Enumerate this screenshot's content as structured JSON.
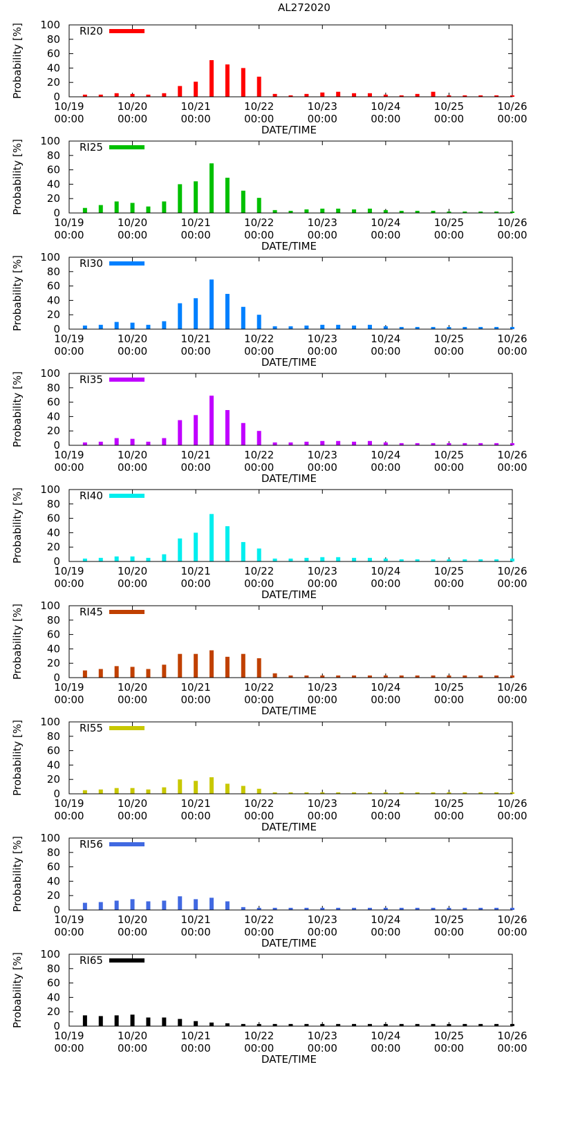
{
  "figure_title": "AL272020",
  "colors": {
    "RI20": "#ff0000",
    "RI25": "#00c000",
    "RI30": "#0080ff",
    "RI35": "#c000ff",
    "RI40": "#00eeee",
    "RI45": "#c04000",
    "RI55": "#c8c800",
    "RI56": "#4169e1",
    "RI65": "#000000"
  },
  "chart_data": [
    {
      "type": "bar",
      "name": "RI20",
      "legend": "RI20",
      "xlabel": "DATE/TIME",
      "ylabel": "Probability [%]",
      "ylim": [
        0,
        100
      ],
      "yticks": [
        "0",
        "20",
        "40",
        "60",
        "80",
        "100"
      ],
      "xlim_hours": [
        0,
        168
      ],
      "xticks": [
        {
          "line1": "10/19",
          "line2": "00:00"
        },
        {
          "line1": "10/20",
          "line2": "00:00"
        },
        {
          "line1": "10/21",
          "line2": "00:00"
        },
        {
          "line1": "10/22",
          "line2": "00:00"
        },
        {
          "line1": "10/23",
          "line2": "00:00"
        },
        {
          "line1": "10/24",
          "line2": "00:00"
        },
        {
          "line1": "10/25",
          "line2": "00:00"
        },
        {
          "line1": "10/26",
          "line2": "00:00"
        }
      ],
      "x_hours": [
        6,
        12,
        18,
        24,
        30,
        36,
        42,
        48,
        54,
        60,
        66,
        72,
        78,
        84,
        90,
        96,
        102,
        108,
        114,
        120,
        126,
        132,
        138,
        144,
        150,
        156,
        162,
        168
      ],
      "values": [
        3,
        3,
        5,
        4,
        3,
        5,
        15,
        21,
        51,
        45,
        40,
        28,
        4,
        2,
        4,
        6,
        7,
        5,
        5,
        3,
        2,
        4,
        7,
        2,
        2,
        2,
        2,
        2
      ]
    },
    {
      "type": "bar",
      "name": "RI25",
      "legend": "RI25",
      "xlabel": "DATE/TIME",
      "ylabel": "Probability [%]",
      "ylim": [
        0,
        100
      ],
      "yticks": [
        "0",
        "20",
        "40",
        "60",
        "80",
        "100"
      ],
      "xlim_hours": [
        0,
        168
      ],
      "xticks": [
        {
          "line1": "10/19",
          "line2": "00:00"
        },
        {
          "line1": "10/20",
          "line2": "00:00"
        },
        {
          "line1": "10/21",
          "line2": "00:00"
        },
        {
          "line1": "10/22",
          "line2": "00:00"
        },
        {
          "line1": "10/23",
          "line2": "00:00"
        },
        {
          "line1": "10/24",
          "line2": "00:00"
        },
        {
          "line1": "10/25",
          "line2": "00:00"
        },
        {
          "line1": "10/26",
          "line2": "00:00"
        }
      ],
      "x_hours": [
        6,
        12,
        18,
        24,
        30,
        36,
        42,
        48,
        54,
        60,
        66,
        72,
        78,
        84,
        90,
        96,
        102,
        108,
        114,
        120,
        126,
        132,
        138,
        144,
        150,
        156,
        162,
        168
      ],
      "values": [
        7,
        11,
        16,
        14,
        9,
        16,
        40,
        44,
        69,
        49,
        31,
        21,
        4,
        3,
        5,
        6,
        6,
        5,
        6,
        4,
        3,
        3,
        3,
        2,
        2,
        2,
        2,
        2
      ]
    },
    {
      "type": "bar",
      "name": "RI30",
      "legend": "RI30",
      "xlabel": "DATE/TIME",
      "ylabel": "Probability [%]",
      "ylim": [
        0,
        100
      ],
      "yticks": [
        "0",
        "20",
        "40",
        "60",
        "80",
        "100"
      ],
      "xlim_hours": [
        0,
        168
      ],
      "xticks": [
        {
          "line1": "10/19",
          "line2": "00:00"
        },
        {
          "line1": "10/20",
          "line2": "00:00"
        },
        {
          "line1": "10/21",
          "line2": "00:00"
        },
        {
          "line1": "10/22",
          "line2": "00:00"
        },
        {
          "line1": "10/23",
          "line2": "00:00"
        },
        {
          "line1": "10/24",
          "line2": "00:00"
        },
        {
          "line1": "10/25",
          "line2": "00:00"
        },
        {
          "line1": "10/26",
          "line2": "00:00"
        }
      ],
      "x_hours": [
        6,
        12,
        18,
        24,
        30,
        36,
        42,
        48,
        54,
        60,
        66,
        72,
        78,
        84,
        90,
        96,
        102,
        108,
        114,
        120,
        126,
        132,
        138,
        144,
        150,
        156,
        162,
        168
      ],
      "values": [
        5,
        6,
        10,
        9,
        6,
        11,
        36,
        43,
        69,
        49,
        31,
        20,
        4,
        4,
        5,
        6,
        6,
        5,
        6,
        4,
        3,
        3,
        3,
        3,
        3,
        3,
        3,
        3
      ]
    },
    {
      "type": "bar",
      "name": "RI35",
      "legend": "RI35",
      "xlabel": "DATE/TIME",
      "ylabel": "Probability [%]",
      "ylim": [
        0,
        100
      ],
      "yticks": [
        "0",
        "20",
        "40",
        "60",
        "80",
        "100"
      ],
      "xlim_hours": [
        0,
        168
      ],
      "xticks": [
        {
          "line1": "10/19",
          "line2": "00:00"
        },
        {
          "line1": "10/20",
          "line2": "00:00"
        },
        {
          "line1": "10/21",
          "line2": "00:00"
        },
        {
          "line1": "10/22",
          "line2": "00:00"
        },
        {
          "line1": "10/23",
          "line2": "00:00"
        },
        {
          "line1": "10/24",
          "line2": "00:00"
        },
        {
          "line1": "10/25",
          "line2": "00:00"
        },
        {
          "line1": "10/26",
          "line2": "00:00"
        }
      ],
      "x_hours": [
        6,
        12,
        18,
        24,
        30,
        36,
        42,
        48,
        54,
        60,
        66,
        72,
        78,
        84,
        90,
        96,
        102,
        108,
        114,
        120,
        126,
        132,
        138,
        144,
        150,
        156,
        162,
        168
      ],
      "values": [
        4,
        5,
        10,
        9,
        5,
        10,
        35,
        42,
        69,
        49,
        31,
        20,
        4,
        4,
        5,
        6,
        6,
        5,
        6,
        4,
        3,
        3,
        3,
        3,
        3,
        3,
        3,
        3
      ]
    },
    {
      "type": "bar",
      "name": "RI40",
      "legend": "RI40",
      "xlabel": "DATE/TIME",
      "ylabel": "Probability [%]",
      "ylim": [
        0,
        100
      ],
      "yticks": [
        "0",
        "20",
        "40",
        "60",
        "80",
        "100"
      ],
      "xlim_hours": [
        0,
        168
      ],
      "xticks": [
        {
          "line1": "10/19",
          "line2": "00:00"
        },
        {
          "line1": "10/20",
          "line2": "00:00"
        },
        {
          "line1": "10/21",
          "line2": "00:00"
        },
        {
          "line1": "10/22",
          "line2": "00:00"
        },
        {
          "line1": "10/23",
          "line2": "00:00"
        },
        {
          "line1": "10/24",
          "line2": "00:00"
        },
        {
          "line1": "10/25",
          "line2": "00:00"
        },
        {
          "line1": "10/26",
          "line2": "00:00"
        }
      ],
      "x_hours": [
        6,
        12,
        18,
        24,
        30,
        36,
        42,
        48,
        54,
        60,
        66,
        72,
        78,
        84,
        90,
        96,
        102,
        108,
        114,
        120,
        126,
        132,
        138,
        144,
        150,
        156,
        162,
        168
      ],
      "values": [
        4,
        5,
        7,
        7,
        5,
        10,
        32,
        40,
        66,
        49,
        27,
        18,
        4,
        4,
        5,
        6,
        6,
        5,
        5,
        4,
        3,
        3,
        3,
        3,
        3,
        3,
        3,
        4
      ]
    },
    {
      "type": "bar",
      "name": "RI45",
      "legend": "RI45",
      "xlabel": "DATE/TIME",
      "ylabel": "Probability [%]",
      "ylim": [
        0,
        100
      ],
      "yticks": [
        "0",
        "20",
        "40",
        "60",
        "80",
        "100"
      ],
      "xlim_hours": [
        0,
        168
      ],
      "xticks": [
        {
          "line1": "10/19",
          "line2": "00:00"
        },
        {
          "line1": "10/20",
          "line2": "00:00"
        },
        {
          "line1": "10/21",
          "line2": "00:00"
        },
        {
          "line1": "10/22",
          "line2": "00:00"
        },
        {
          "line1": "10/23",
          "line2": "00:00"
        },
        {
          "line1": "10/24",
          "line2": "00:00"
        },
        {
          "line1": "10/25",
          "line2": "00:00"
        },
        {
          "line1": "10/26",
          "line2": "00:00"
        }
      ],
      "x_hours": [
        6,
        12,
        18,
        24,
        30,
        36,
        42,
        48,
        54,
        60,
        66,
        72,
        78,
        84,
        90,
        96,
        102,
        108,
        114,
        120,
        126,
        132,
        138,
        144,
        150,
        156,
        162,
        168
      ],
      "values": [
        10,
        12,
        16,
        15,
        12,
        18,
        33,
        33,
        38,
        29,
        33,
        27,
        6,
        3,
        3,
        3,
        3,
        3,
        3,
        3,
        3,
        3,
        3,
        3,
        3,
        3,
        3,
        3
      ]
    },
    {
      "type": "bar",
      "name": "RI55",
      "legend": "RI55",
      "xlabel": "DATE/TIME",
      "ylabel": "Probability [%]",
      "ylim": [
        0,
        100
      ],
      "yticks": [
        "0",
        "20",
        "40",
        "60",
        "80",
        "100"
      ],
      "xlim_hours": [
        0,
        168
      ],
      "xticks": [
        {
          "line1": "10/19",
          "line2": "00:00"
        },
        {
          "line1": "10/20",
          "line2": "00:00"
        },
        {
          "line1": "10/21",
          "line2": "00:00"
        },
        {
          "line1": "10/22",
          "line2": "00:00"
        },
        {
          "line1": "10/23",
          "line2": "00:00"
        },
        {
          "line1": "10/24",
          "line2": "00:00"
        },
        {
          "line1": "10/25",
          "line2": "00:00"
        },
        {
          "line1": "10/26",
          "line2": "00:00"
        }
      ],
      "x_hours": [
        6,
        12,
        18,
        24,
        30,
        36,
        42,
        48,
        54,
        60,
        66,
        72,
        78,
        84,
        90,
        96,
        102,
        108,
        114,
        120,
        126,
        132,
        138,
        144,
        150,
        156,
        162,
        168
      ],
      "values": [
        5,
        6,
        8,
        8,
        6,
        9,
        20,
        18,
        23,
        14,
        11,
        7,
        2,
        2,
        2,
        2,
        2,
        2,
        2,
        2,
        2,
        2,
        2,
        2,
        2,
        2,
        2,
        2
      ]
    },
    {
      "type": "bar",
      "name": "RI56",
      "legend": "RI56",
      "xlabel": "DATE/TIME",
      "ylabel": "Probability [%]",
      "ylim": [
        0,
        100
      ],
      "yticks": [
        "0",
        "20",
        "40",
        "60",
        "80",
        "100"
      ],
      "xlim_hours": [
        0,
        168
      ],
      "xticks": [
        {
          "line1": "10/19",
          "line2": "00:00"
        },
        {
          "line1": "10/20",
          "line2": "00:00"
        },
        {
          "line1": "10/21",
          "line2": "00:00"
        },
        {
          "line1": "10/22",
          "line2": "00:00"
        },
        {
          "line1": "10/23",
          "line2": "00:00"
        },
        {
          "line1": "10/24",
          "line2": "00:00"
        },
        {
          "line1": "10/25",
          "line2": "00:00"
        },
        {
          "line1": "10/26",
          "line2": "00:00"
        }
      ],
      "x_hours": [
        6,
        12,
        18,
        24,
        30,
        36,
        42,
        48,
        54,
        60,
        66,
        72,
        78,
        84,
        90,
        96,
        102,
        108,
        114,
        120,
        126,
        132,
        138,
        144,
        150,
        156,
        162,
        168
      ],
      "values": [
        10,
        11,
        13,
        15,
        12,
        13,
        19,
        15,
        17,
        12,
        4,
        3,
        3,
        3,
        3,
        3,
        3,
        3,
        3,
        3,
        3,
        3,
        3,
        3,
        3,
        3,
        3,
        3
      ]
    },
    {
      "type": "bar",
      "name": "RI65",
      "legend": "RI65",
      "xlabel": "DATE/TIME",
      "ylabel": "Probability [%]",
      "ylim": [
        0,
        100
      ],
      "yticks": [
        "0",
        "20",
        "40",
        "60",
        "80",
        "100"
      ],
      "xlim_hours": [
        0,
        168
      ],
      "xticks": [
        {
          "line1": "10/19",
          "line2": "00:00"
        },
        {
          "line1": "10/20",
          "line2": "00:00"
        },
        {
          "line1": "10/21",
          "line2": "00:00"
        },
        {
          "line1": "10/22",
          "line2": "00:00"
        },
        {
          "line1": "10/23",
          "line2": "00:00"
        },
        {
          "line1": "10/24",
          "line2": "00:00"
        },
        {
          "line1": "10/25",
          "line2": "00:00"
        },
        {
          "line1": "10/26",
          "line2": "00:00"
        }
      ],
      "x_hours": [
        6,
        12,
        18,
        24,
        30,
        36,
        42,
        48,
        54,
        60,
        66,
        72,
        78,
        84,
        90,
        96,
        102,
        108,
        114,
        120,
        126,
        132,
        138,
        144,
        150,
        156,
        162,
        168
      ],
      "values": [
        15,
        14,
        15,
        16,
        12,
        12,
        10,
        7,
        5,
        4,
        3,
        3,
        3,
        3,
        3,
        3,
        3,
        3,
        3,
        3,
        3,
        3,
        3,
        3,
        3,
        3,
        3,
        3
      ]
    }
  ]
}
